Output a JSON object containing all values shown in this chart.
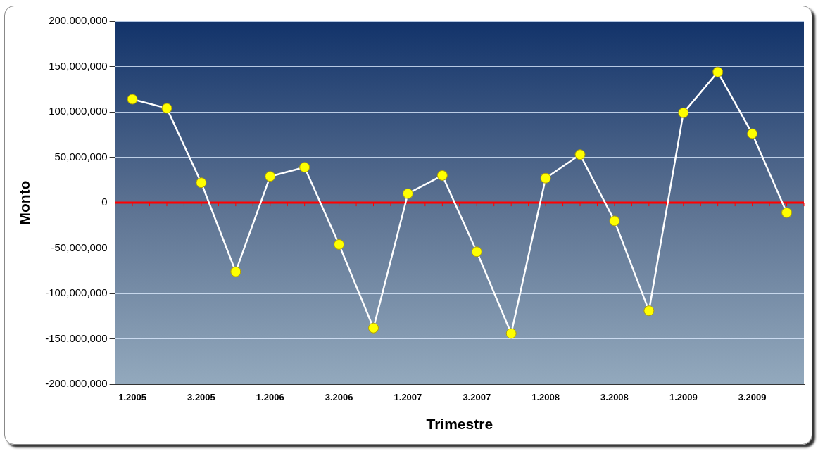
{
  "chart_data": {
    "type": "line",
    "xlabel": "Trimestre",
    "ylabel": "Monto",
    "categories": [
      "1.2005",
      null,
      "3.2005",
      null,
      "1.2006",
      null,
      "3.2006",
      null,
      "1.2007",
      null,
      "3.2007",
      null,
      "1.2008",
      null,
      "3.2008",
      null,
      "1.2009",
      null,
      "3.2009",
      null
    ],
    "series": [
      {
        "color": "#ffffff",
        "values": [
          114000000,
          104000000,
          22000000,
          -76000000,
          29000000,
          39000000,
          -46000000,
          -138000000,
          10000000,
          30000000,
          -54000000,
          -144000000,
          27000000,
          53000000,
          -20000000,
          -119000000,
          99000000,
          144000000,
          76000000,
          -11000000
        ]
      }
    ],
    "ylim": [
      -200000000,
      200000000
    ],
    "yticks": [
      {
        "value": -200000000,
        "label": "-200,000,000"
      },
      {
        "value": -150000000,
        "label": "-150,000,000"
      },
      {
        "value": -100000000,
        "label": "-100,000,000"
      },
      {
        "value": -50000000,
        "label": "-50,000,000"
      },
      0,
      {
        "value": 50000000,
        "label": "50,000,000"
      },
      {
        "value": 100000000,
        "label": "100,000,000"
      },
      {
        "value": 150000000,
        "label": "150,000,000"
      },
      {
        "value": 200000000,
        "label": "200,000,000"
      }
    ],
    "ref_lines": [
      {
        "axis": "y",
        "value": 0,
        "color": "#ff0000"
      }
    ],
    "grid": "y",
    "legend": false,
    "marker": "circle",
    "line_style": "solid"
  }
}
